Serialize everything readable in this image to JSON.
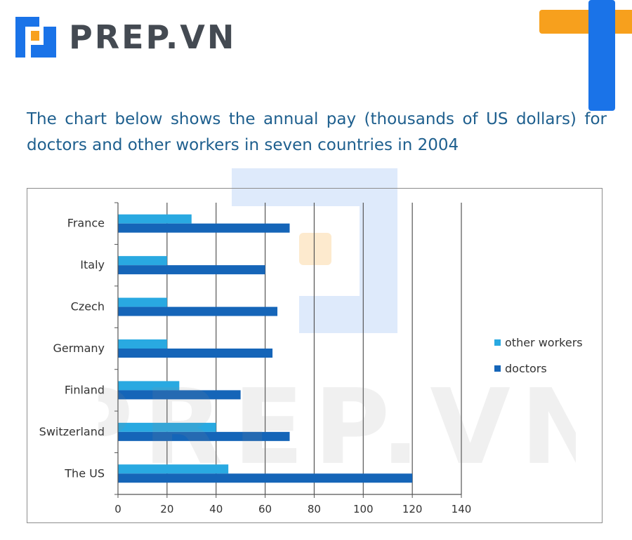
{
  "brand": {
    "name": "PREP.VN",
    "colors": {
      "blue": "#1a73e8",
      "orange": "#f7a01d",
      "text": "#444a52"
    },
    "watermark_text": "PREP.VN"
  },
  "caption": "The chart below shows the annual pay (thousands of US dollars) for doctors and other workers in seven countries in 2004",
  "chart_data": {
    "type": "bar",
    "orientation": "horizontal",
    "categories": [
      "France",
      "Italy",
      "Czech",
      "Germany",
      "Finland",
      "Switzerland",
      "The US"
    ],
    "series": [
      {
        "name": "other workers",
        "color": "#29a9e1",
        "values": [
          30,
          20,
          20,
          20,
          25,
          40,
          45
        ]
      },
      {
        "name": "doctors",
        "color": "#1565b8",
        "values": [
          70,
          60,
          65,
          63,
          50,
          70,
          120
        ]
      }
    ],
    "x_ticks": [
      0,
      20,
      40,
      60,
      80,
      100,
      120,
      140
    ],
    "xlim": [
      0,
      140
    ],
    "grid": "vertical",
    "legend_position": "right"
  }
}
